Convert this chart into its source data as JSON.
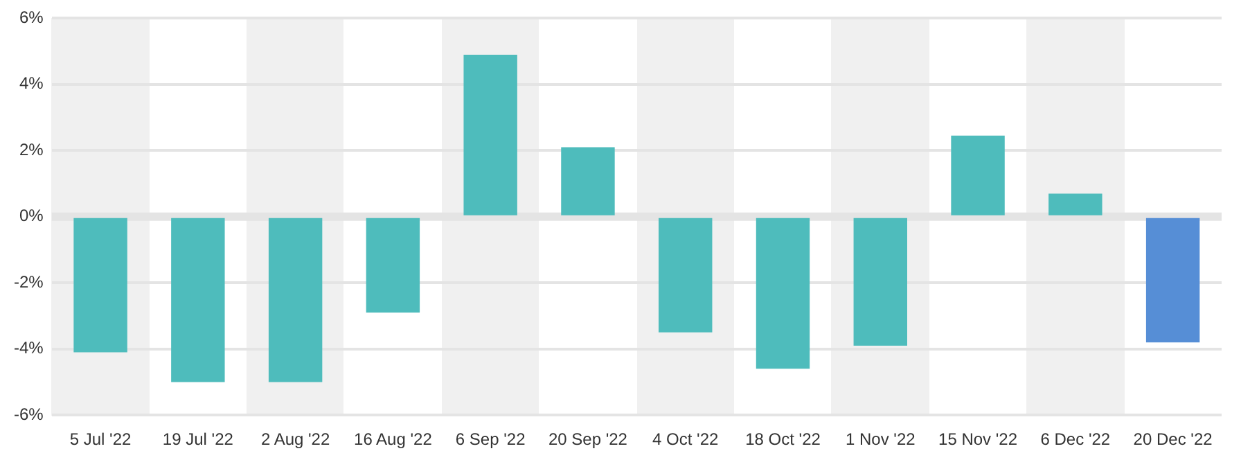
{
  "chart_data": {
    "type": "bar",
    "categories": [
      "5 Jul '22",
      "19 Jul '22",
      "2 Aug '22",
      "16 Aug '22",
      "6 Sep '22",
      "20 Sep '22",
      "4 Oct '22",
      "18 Oct '22",
      "1 Nov '22",
      "15 Nov '22",
      "6 Dec '22",
      "20 Dec '22"
    ],
    "values": [
      -4.1,
      -5.0,
      -5.0,
      -2.9,
      4.9,
      2.1,
      -3.5,
      -4.6,
      -3.9,
      2.45,
      0.7,
      -3.8
    ],
    "colors": [
      "#4ebcbc",
      "#4ebcbc",
      "#4ebcbc",
      "#4ebcbc",
      "#4ebcbc",
      "#4ebcbc",
      "#4ebcbc",
      "#4ebcbc",
      "#4ebcbc",
      "#4ebcbc",
      "#4ebcbc",
      "#568ed6"
    ],
    "ylim": [
      -6,
      6
    ],
    "yticks": [
      {
        "value": -6,
        "label": "-6%"
      },
      {
        "value": -4,
        "label": "-4%"
      },
      {
        "value": -2,
        "label": "-2%"
      },
      {
        "value": 0,
        "label": "0%"
      },
      {
        "value": 2,
        "label": "2%"
      },
      {
        "value": 4,
        "label": "4%"
      },
      {
        "value": 6,
        "label": "6%"
      }
    ],
    "ref_lines": [
      {
        "axis": "y",
        "value": 0,
        "color": "#e4e4e4"
      }
    ],
    "grid": "y",
    "legend": false
  }
}
